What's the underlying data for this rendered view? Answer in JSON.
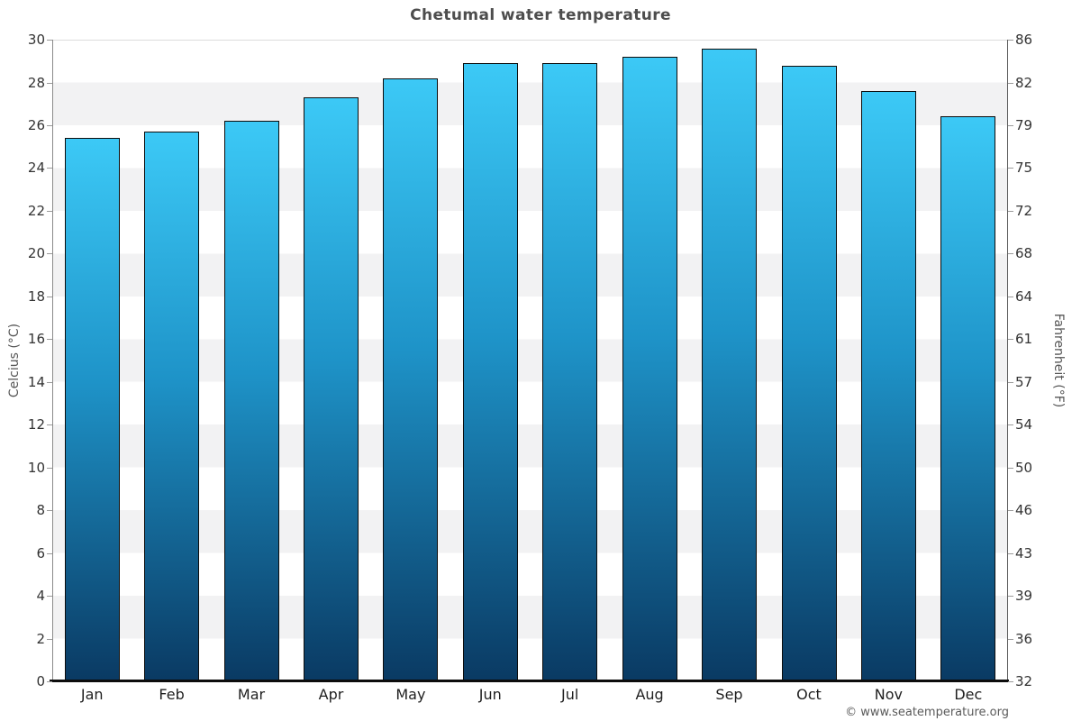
{
  "title": "Chetumal water temperature",
  "footer_credit": "© www.seatemperature.org",
  "y_axis_left": {
    "label": "Celcius (°C)",
    "tick_labels": [
      "30",
      "28",
      "26",
      "24",
      "22",
      "20",
      "18",
      "16",
      "14",
      "12",
      "10",
      "8",
      "6",
      "4",
      "2",
      "0"
    ]
  },
  "y_axis_right": {
    "label": "Fahrenheit (°F)",
    "tick_labels": [
      "86",
      "82",
      "79",
      "75",
      "72",
      "68",
      "64",
      "61",
      "57",
      "54",
      "50",
      "46",
      "43",
      "39",
      "36",
      "32"
    ]
  },
  "x_axis": {
    "tick_labels": [
      "Jan",
      "Feb",
      "Mar",
      "Apr",
      "May",
      "Jun",
      "Jul",
      "Aug",
      "Sep",
      "Oct",
      "Nov",
      "Dec"
    ]
  },
  "colors": {
    "bar_gradient_top": "#3cc9f6",
    "bar_gradient_mid": "#1e93c8",
    "bar_gradient_bottom": "#0a3a63",
    "bar_border": "#0c0c0c",
    "band_white": "#ffffff",
    "band_gray": "#f2f2f3",
    "title_text": "#4d4d4d",
    "tick_text": "#333333",
    "axis_title_text": "#555555",
    "footer_text": "#5a5a5a",
    "bottom_axis_line": "#0d0d0d"
  },
  "chart_data": {
    "type": "bar",
    "title": "Chetumal water temperature",
    "categories": [
      "Jan",
      "Feb",
      "Mar",
      "Apr",
      "May",
      "Jun",
      "Jul",
      "Aug",
      "Sep",
      "Oct",
      "Nov",
      "Dec"
    ],
    "series": [
      {
        "name": "Water temperature (°C)",
        "values": [
          25.4,
          25.7,
          26.2,
          27.3,
          28.2,
          28.9,
          28.9,
          29.2,
          29.6,
          28.8,
          27.6,
          26.4
        ]
      }
    ],
    "xlabel": "",
    "ylabel_left": "Celcius (°C)",
    "ylabel_right": "Fahrenheit (°F)",
    "ylim": [
      0,
      30
    ],
    "ytick_step_celsius": 2,
    "fahrenheit_tick_labels": [
      86,
      82,
      79,
      75,
      72,
      68,
      64,
      61,
      57,
      54,
      50,
      46,
      43,
      39,
      36,
      32
    ],
    "grid": "alternating 2°C horizontal bands, white and light gray",
    "legend": "none",
    "bar_style": "vertical gradient light cyan to dark navy, black outline"
  }
}
